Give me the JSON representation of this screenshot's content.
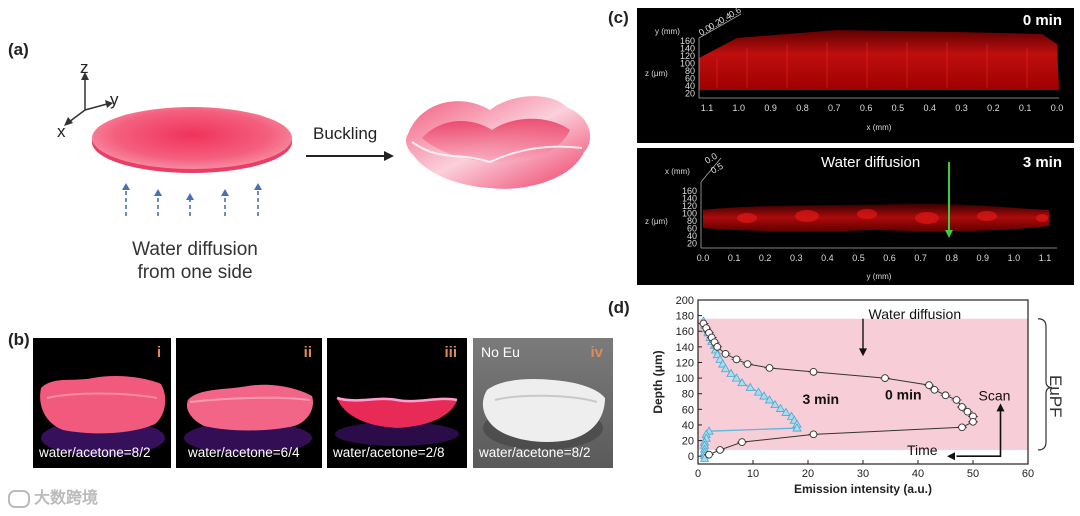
{
  "panel_a": {
    "label": "(a)",
    "axes": {
      "z": "z",
      "y": "y",
      "x": "x"
    },
    "arrow_label": "Buckling",
    "caption_line1": "Water diffusion",
    "caption_line2": "from one side"
  },
  "panel_b": {
    "label": "(b)",
    "photos": [
      {
        "tag": "i",
        "condition": "water/acetone=8/2",
        "extra": ""
      },
      {
        "tag": "ii",
        "condition": "water/acetone=6/4",
        "extra": ""
      },
      {
        "tag": "iii",
        "condition": "water/acetone=2/8",
        "extra": ""
      },
      {
        "tag": "iv",
        "condition": "water/acetone=8/2",
        "extra": "No Eu"
      }
    ]
  },
  "panel_c": {
    "label": "(c)",
    "top": {
      "time": "0 min",
      "y_axis_label": "y (mm)",
      "y_ticks": [
        "0.0",
        "0.2",
        "0.4",
        "0.6"
      ],
      "z_axis_label": "z (μm)",
      "z_ticks": [
        "160",
        "140",
        "120",
        "100",
        "80",
        "60",
        "40",
        "20"
      ],
      "x_axis_label": "x (mm)",
      "x_ticks": [
        "1.1",
        "1.0",
        "0.9",
        "0.8",
        "0.7",
        "0.6",
        "0.5",
        "0.4",
        "0.3",
        "0.2",
        "0.1",
        "0.0"
      ]
    },
    "bottom": {
      "time": "3 min",
      "annotation": "Water diffusion",
      "x_axis_label": "x (mm)",
      "x_ticks_small": [
        "0.0",
        "0.5"
      ],
      "z_axis_label": "z (μm)",
      "z_ticks": [
        "160",
        "140",
        "120",
        "100",
        "80",
        "60",
        "40",
        "20"
      ],
      "y_axis_label": "y (mm)",
      "y_ticks": [
        "0.0",
        "0.1",
        "0.2",
        "0.3",
        "0.4",
        "0.5",
        "0.6",
        "0.7",
        "0.8",
        "0.9",
        "1.0",
        "1.1"
      ]
    }
  },
  "panel_d": {
    "label": "(d)",
    "side_label": "EuPF",
    "annotations": {
      "water_diffusion": "Water diffusion",
      "scan": "Scan",
      "time": "Time"
    }
  },
  "watermark": "大数跨境",
  "colors": {
    "shade": "#f7cdd8",
    "disk": "#f2385f",
    "series_0min": "#ffffff",
    "series_3min": "#a8dcef",
    "series_3min_line": "#5fb7d9"
  },
  "chart_data": {
    "type": "scatter",
    "title": "",
    "xlabel": "Emission intensity (a.u.)",
    "ylabel": "Depth (μm)",
    "xlim": [
      0,
      60
    ],
    "ylim": [
      -10,
      200
    ],
    "x_ticks": [
      0,
      10,
      20,
      30,
      40,
      50,
      60
    ],
    "y_ticks": [
      0,
      20,
      40,
      60,
      80,
      100,
      120,
      140,
      160,
      180,
      200
    ],
    "shaded_region_y": [
      8,
      176
    ],
    "series": [
      {
        "name": "0 min",
        "points": [
          [
            1,
            170
          ],
          [
            1.5,
            164
          ],
          [
            2,
            158
          ],
          [
            2.5,
            152
          ],
          [
            3,
            146
          ],
          [
            3.5,
            140
          ],
          [
            5,
            131
          ],
          [
            7,
            124
          ],
          [
            9,
            118
          ],
          [
            13,
            113
          ],
          [
            21,
            108
          ],
          [
            34,
            100
          ],
          [
            42,
            91
          ],
          [
            43,
            85
          ],
          [
            45,
            78
          ],
          [
            47,
            72
          ],
          [
            48,
            63
          ],
          [
            49,
            57
          ],
          [
            50,
            51
          ],
          [
            50,
            44
          ],
          [
            48,
            37
          ],
          [
            21,
            28
          ],
          [
            8,
            18
          ],
          [
            4,
            8
          ],
          [
            2,
            2
          ]
        ]
      },
      {
        "name": "3 min",
        "points": [
          [
            1,
            173
          ],
          [
            1.2,
            168
          ],
          [
            1.5,
            163
          ],
          [
            1.8,
            158
          ],
          [
            2.2,
            152
          ],
          [
            2.5,
            147
          ],
          [
            3,
            142
          ],
          [
            3.2,
            136
          ],
          [
            3.5,
            130
          ],
          [
            4,
            124
          ],
          [
            4.5,
            118
          ],
          [
            5,
            112
          ],
          [
            6,
            106
          ],
          [
            7,
            100
          ],
          [
            8,
            94
          ],
          [
            9.5,
            88
          ],
          [
            11,
            82
          ],
          [
            12,
            77
          ],
          [
            13,
            72
          ],
          [
            14,
            66
          ],
          [
            15,
            61
          ],
          [
            16,
            56
          ],
          [
            17,
            51
          ],
          [
            17.5,
            46
          ],
          [
            18,
            41
          ],
          [
            18,
            36
          ],
          [
            2,
            32
          ],
          [
            1.5,
            28
          ],
          [
            1.5,
            23
          ],
          [
            1.2,
            18
          ],
          [
            1.2,
            14
          ],
          [
            1.2,
            9
          ],
          [
            1.2,
            5
          ],
          [
            1.2,
            1
          ],
          [
            1.2,
            -3
          ]
        ]
      }
    ]
  }
}
